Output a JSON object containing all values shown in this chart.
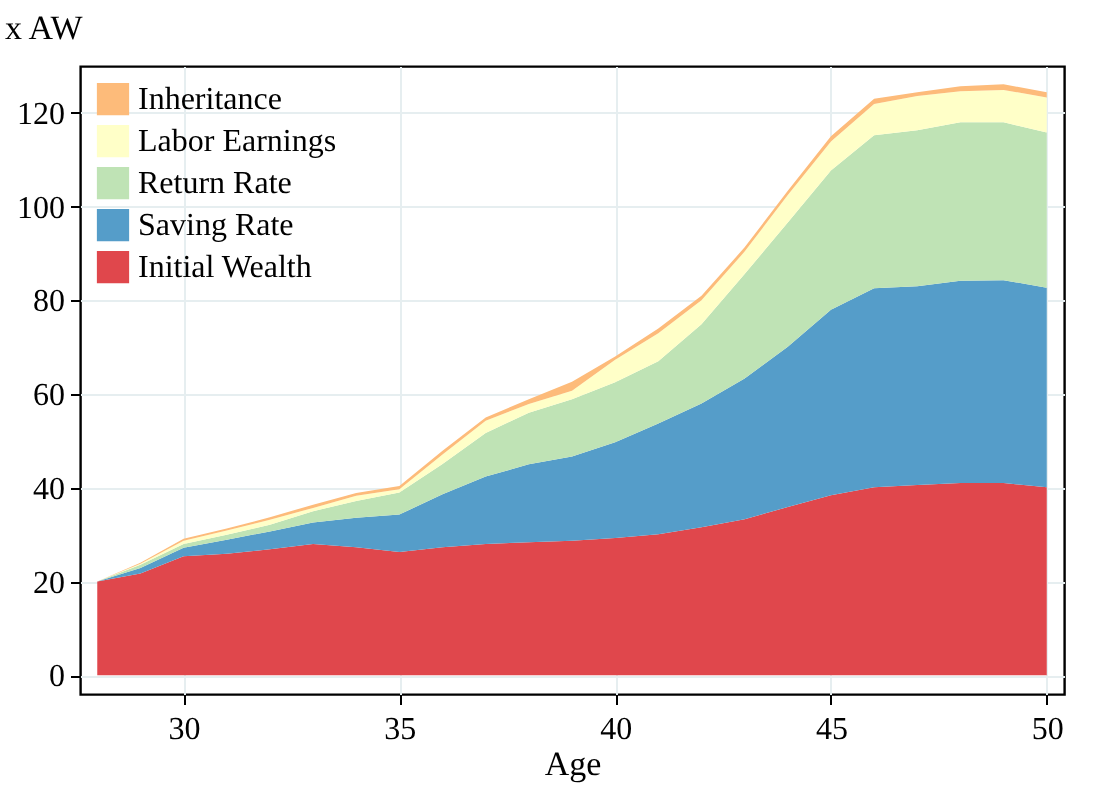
{
  "chart_data": {
    "type": "area",
    "stacked": true,
    "xlabel": "Age",
    "ylabel": "x AW",
    "x": [
      28,
      29,
      30,
      31,
      32,
      33,
      34,
      35,
      36,
      37,
      38,
      39,
      40,
      41,
      42,
      43,
      44,
      45,
      46,
      47,
      48,
      49,
      50
    ],
    "xlim": [
      27.6,
      50.4
    ],
    "xticks": [
      30,
      35,
      40,
      45,
      50
    ],
    "ylim": [
      -4,
      130
    ],
    "yticks": [
      0,
      20,
      40,
      60,
      80,
      100,
      120
    ],
    "grid": true,
    "legend": "top left",
    "series": [
      {
        "name": "Initial Wealth",
        "color": "#e0474c",
        "values": [
          20,
          21.7,
          25.4,
          25.9,
          26.9,
          28,
          27.3,
          26.3,
          27.3,
          28,
          28.4,
          28.7,
          29.3,
          30.1,
          31.6,
          33.3,
          35.9,
          38.4,
          40.1,
          40.6,
          41,
          41,
          40.1
        ]
      },
      {
        "name": "Saving Rate",
        "color": "#559dc9",
        "values": [
          0,
          1.2,
          1.8,
          3,
          3.8,
          4.6,
          6.3,
          8,
          11.3,
          14.4,
          16.6,
          18,
          20.4,
          23.6,
          26.4,
          30,
          34.2,
          39.6,
          42.5,
          42.4,
          43.2,
          43.3,
          42.6
        ]
      },
      {
        "name": "Return Rate",
        "color": "#bfe3b5",
        "values": [
          0,
          0.7,
          0.8,
          1.1,
          1.4,
          2.4,
          3.6,
          4.7,
          6.5,
          9.3,
          11,
          12.2,
          12.8,
          13.3,
          16.9,
          22.3,
          26.5,
          29.7,
          32.6,
          33.3,
          33.8,
          33.7,
          33.1
        ]
      },
      {
        "name": "Labor Earnings",
        "color": "#ffffc8",
        "values": [
          0,
          0.2,
          0.7,
          0.9,
          1.1,
          0.7,
          1.1,
          0.7,
          2,
          2.6,
          1.9,
          1.8,
          4.8,
          6,
          5.1,
          4.8,
          5.9,
          6.2,
          6.7,
          7.3,
          6.6,
          6.9,
          7.5
        ]
      },
      {
        "name": "Inheritance",
        "color": "#fdbb7a",
        "values": [
          0,
          0.2,
          0.4,
          0.4,
          0.5,
          0.7,
          0.6,
          0.7,
          0.8,
          0.7,
          1,
          1.9,
          0.7,
          1,
          1,
          0.9,
          0.9,
          1.1,
          1.1,
          0.8,
          1.1,
          1.2,
          1.1
        ]
      }
    ]
  }
}
